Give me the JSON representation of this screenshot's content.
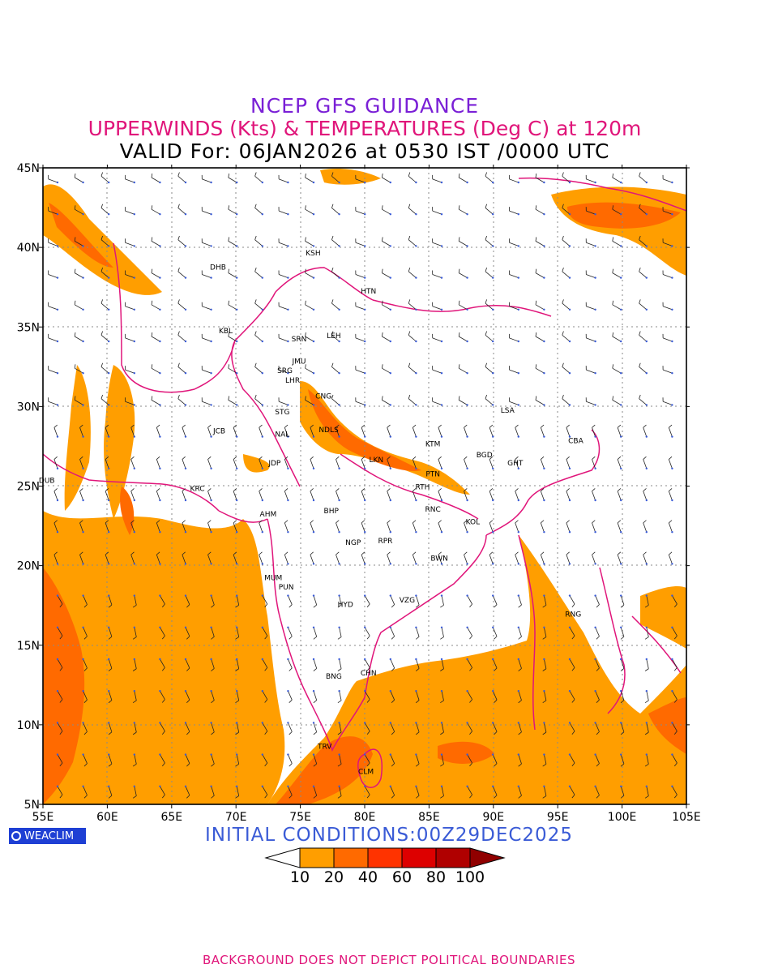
{
  "header": {
    "title": "NCEP GFS GUIDANCE",
    "subtitle": "UPPERWINDS (Kts) & TEMPERATURES (Deg C) at 120m",
    "valid": "VALID For: 06JAN2026 at 0530 IST /0000 UTC"
  },
  "axes": {
    "lat_labels": [
      "45N",
      "40N",
      "35N",
      "30N",
      "25N",
      "20N",
      "15N",
      "10N",
      "5N"
    ],
    "lon_labels": [
      "55E",
      "60E",
      "65E",
      "70E",
      "75E",
      "80E",
      "85E",
      "90E",
      "95E",
      "100E",
      "105E"
    ]
  },
  "stations": [
    {
      "code": "KSH",
      "lon": 76.0,
      "lat": 39.5
    },
    {
      "code": "DHB",
      "lon": 68.6,
      "lat": 38.6
    },
    {
      "code": "HTN",
      "lon": 80.3,
      "lat": 37.1
    },
    {
      "code": "KBL",
      "lon": 69.2,
      "lat": 34.6
    },
    {
      "code": "SRN",
      "lon": 74.9,
      "lat": 34.1
    },
    {
      "code": "LEH",
      "lon": 77.6,
      "lat": 34.3
    },
    {
      "code": "JMU",
      "lon": 74.9,
      "lat": 32.7
    },
    {
      "code": "SRG",
      "lon": 73.8,
      "lat": 32.1
    },
    {
      "code": "LHR",
      "lon": 74.4,
      "lat": 31.5
    },
    {
      "code": "CNG",
      "lon": 76.8,
      "lat": 30.5
    },
    {
      "code": "LSA",
      "lon": 91.1,
      "lat": 29.6
    },
    {
      "code": "STG",
      "lon": 73.6,
      "lat": 29.5
    },
    {
      "code": "JCB",
      "lon": 68.7,
      "lat": 28.3
    },
    {
      "code": "NAL",
      "lon": 73.6,
      "lat": 28.1
    },
    {
      "code": "NDLS",
      "lon": 77.2,
      "lat": 28.4
    },
    {
      "code": "KTM",
      "lon": 85.3,
      "lat": 27.5
    },
    {
      "code": "CBA",
      "lon": 96.4,
      "lat": 27.7
    },
    {
      "code": "BGD",
      "lon": 89.3,
      "lat": 26.8
    },
    {
      "code": "GHT",
      "lon": 91.7,
      "lat": 26.3
    },
    {
      "code": "JDP",
      "lon": 73.0,
      "lat": 26.3
    },
    {
      "code": "LKN",
      "lon": 80.9,
      "lat": 26.5
    },
    {
      "code": "PTN",
      "lon": 85.3,
      "lat": 25.6
    },
    {
      "code": "DUB",
      "lon": 55.3,
      "lat": 25.2
    },
    {
      "code": "RTH",
      "lon": 84.5,
      "lat": 24.8
    },
    {
      "code": "KRC",
      "lon": 67.0,
      "lat": 24.7
    },
    {
      "code": "BHP",
      "lon": 77.4,
      "lat": 23.3
    },
    {
      "code": "AHM",
      "lon": 72.5,
      "lat": 23.1
    },
    {
      "code": "RNC",
      "lon": 85.3,
      "lat": 23.4
    },
    {
      "code": "KOL",
      "lon": 88.4,
      "lat": 22.6
    },
    {
      "code": "NGP",
      "lon": 79.1,
      "lat": 21.3
    },
    {
      "code": "RPR",
      "lon": 81.6,
      "lat": 21.4
    },
    {
      "code": "BWN",
      "lon": 85.8,
      "lat": 20.3
    },
    {
      "code": "MUM",
      "lon": 72.9,
      "lat": 19.1
    },
    {
      "code": "HYD",
      "lon": 78.5,
      "lat": 17.4
    },
    {
      "code": "VZG",
      "lon": 83.3,
      "lat": 17.7
    },
    {
      "code": "RNG",
      "lon": 96.2,
      "lat": 16.8
    },
    {
      "code": "PUN",
      "lon": 73.9,
      "lat": 18.5
    },
    {
      "code": "CHN",
      "lon": 80.3,
      "lat": 13.1
    },
    {
      "code": "BNG",
      "lon": 77.6,
      "lat": 12.9
    },
    {
      "code": "TRV",
      "lon": 76.9,
      "lat": 8.5
    },
    {
      "code": "CLM",
      "lon": 80.1,
      "lat": 6.9
    }
  ],
  "legend": {
    "labels": [
      "10",
      "20",
      "40",
      "60",
      "80",
      "100"
    ],
    "colors": [
      "#ffffff",
      "#ff9e00",
      "#ff6a00",
      "#ff3300",
      "#dd0000",
      "#b00000",
      "#900000"
    ]
  },
  "initial_conditions": "INITIAL  CONDITIONS:00Z29DEC2025",
  "logo_text": "WEACLIM",
  "footer": "BACKGROUND DOES NOT DEPICT POLITICAL BOUNDARIES"
}
